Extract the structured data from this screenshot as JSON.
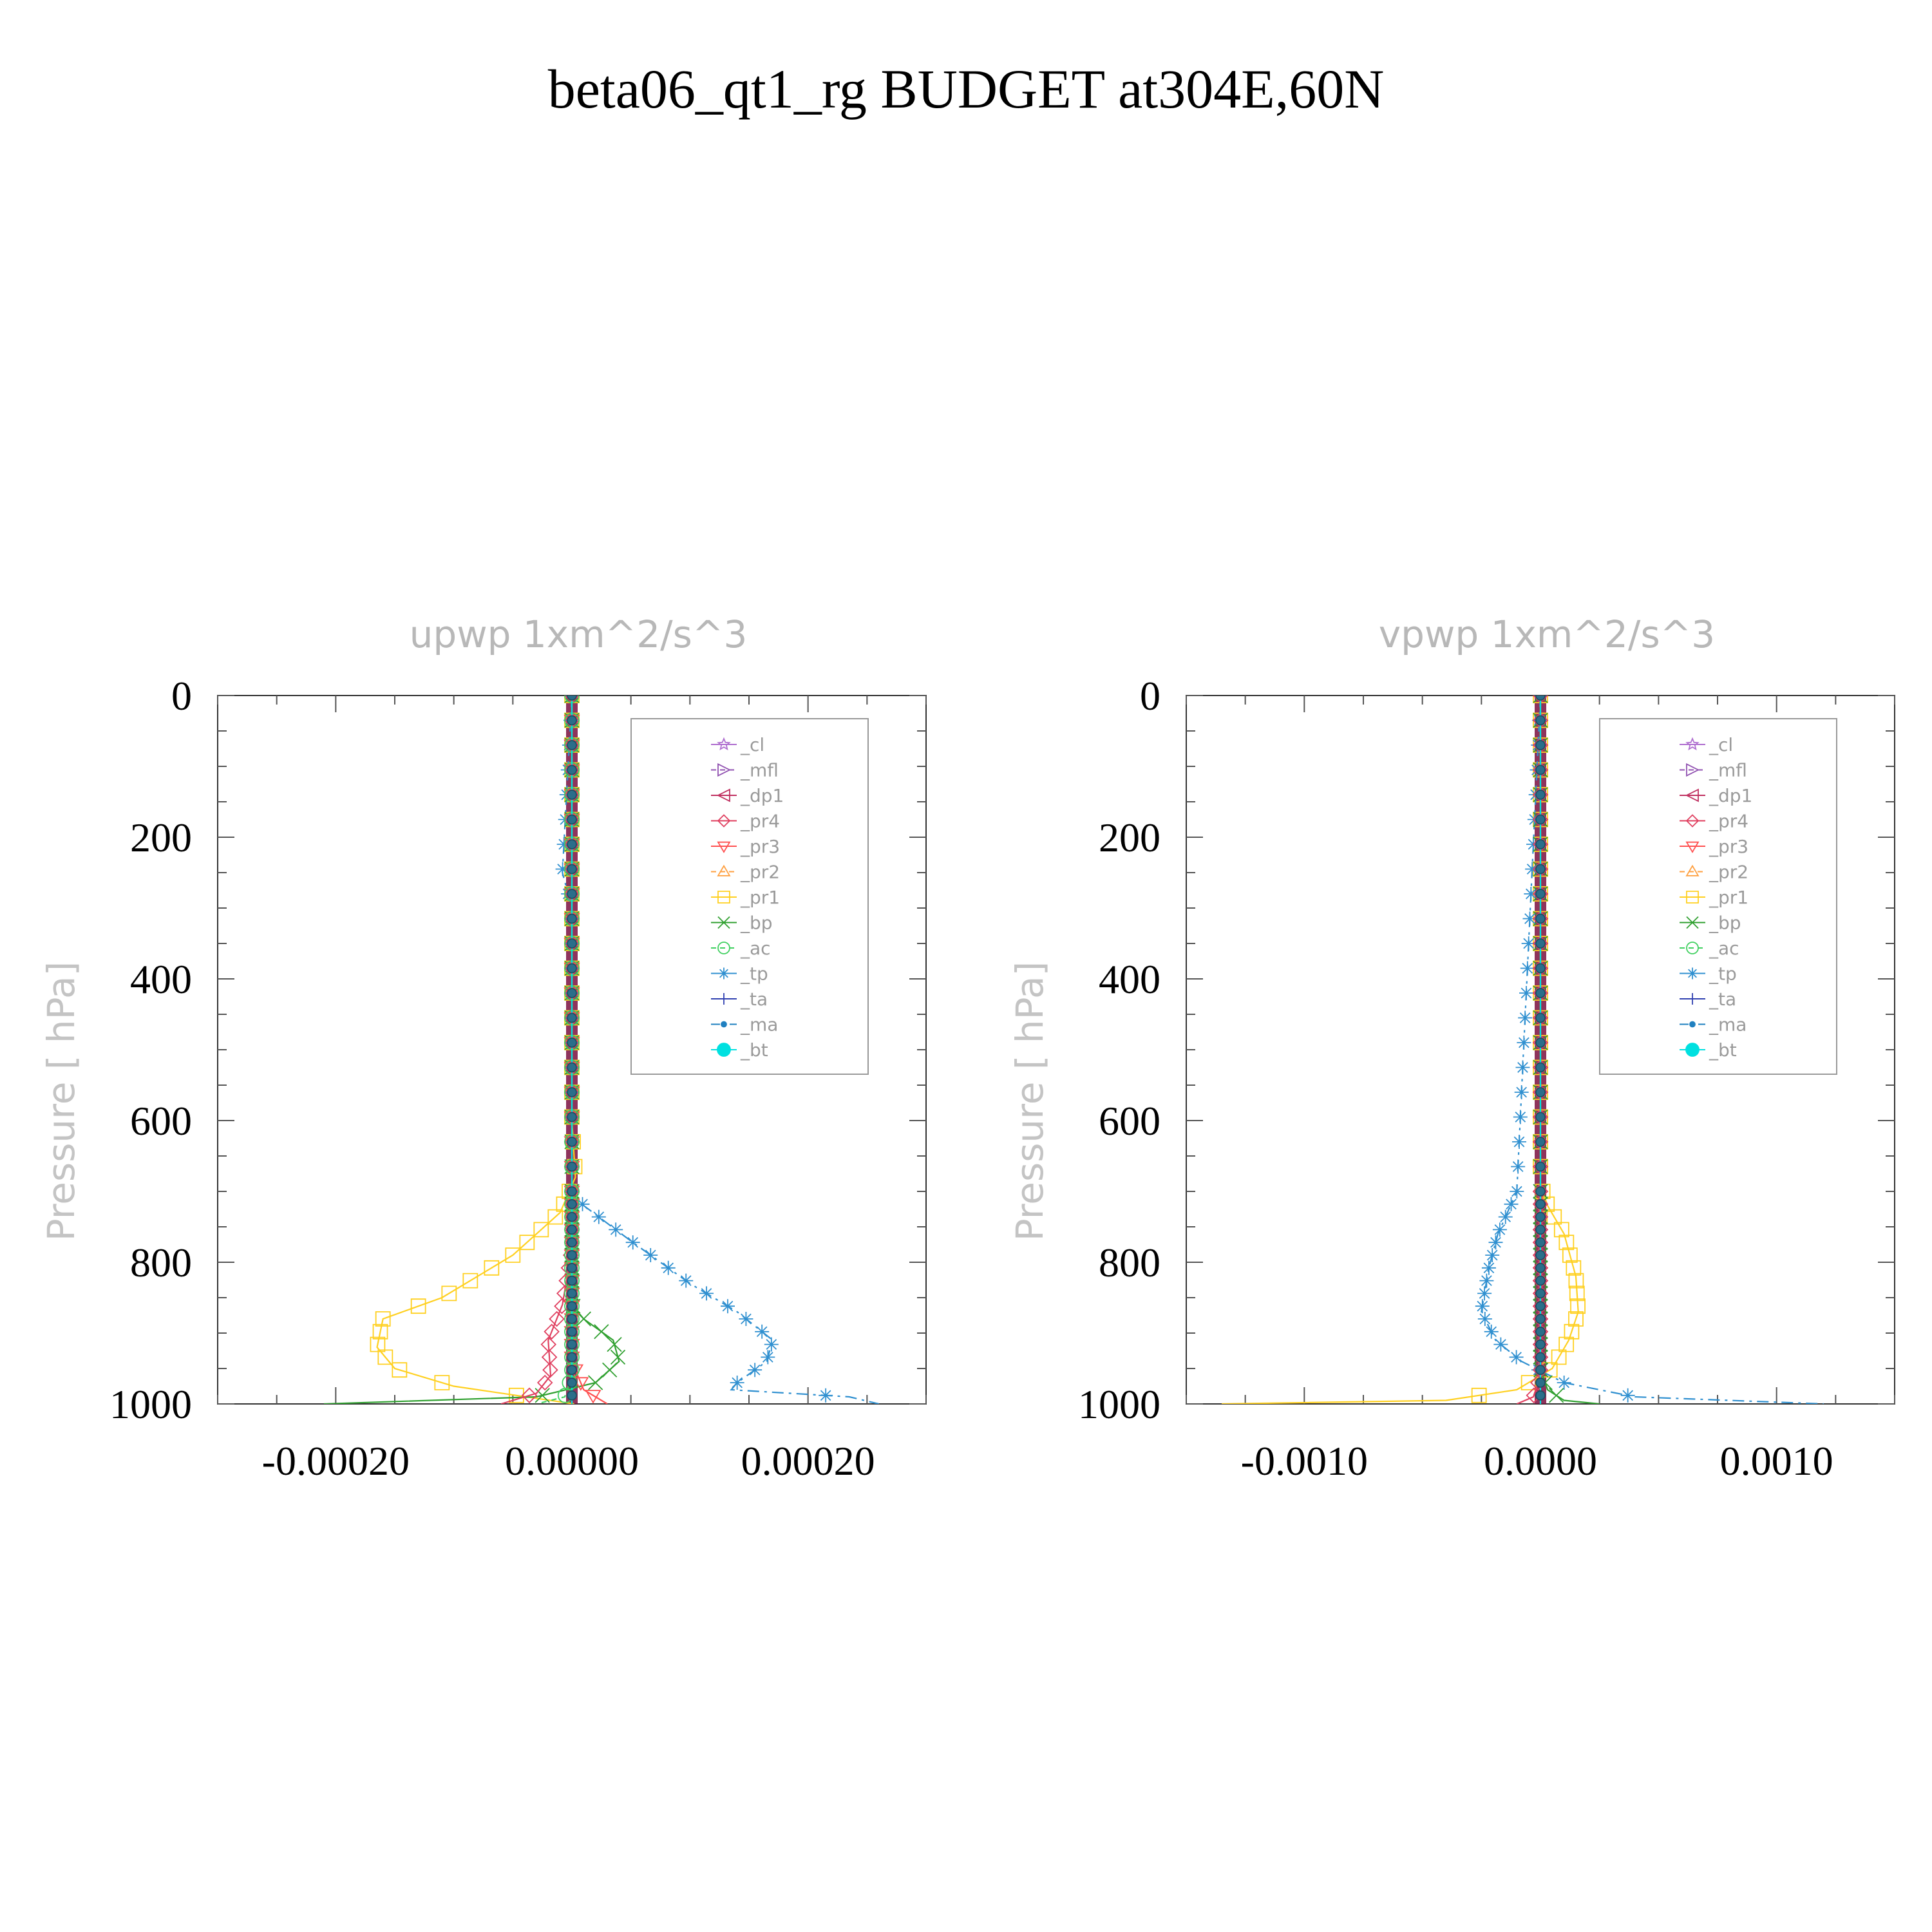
{
  "figure_title": "beta06_qt1_rg  BUDGET at304E,60N",
  "ylabel": "Pressure [ hPa]",
  "legend": [
    "_cl",
    "_mfl",
    "_dp1",
    "_pr4",
    "_pr3",
    "_pr2",
    "_pr1",
    "_bp",
    "_ac",
    "_tp",
    "_ta",
    "_ma",
    "_bt"
  ],
  "series_colors": {
    "_cl": "#b070d0",
    "_mfl": "#9050b0",
    "_dp1": "#c03060",
    "_pr4": "#e04060",
    "_pr3": "#ff5050",
    "_pr2": "#ffa040",
    "_pr1": "#ffd020",
    "_bp": "#30a030",
    "_ac": "#40d060",
    "_tp": "#3090d0",
    "_ta": "#3040b0",
    "_ma": "#2080c0",
    "_bt": "#00e0e0"
  },
  "chart_data": [
    {
      "type": "line",
      "title": "upwp    1xm^2/s^3",
      "ylabel": "Pressure [ hPa]",
      "ylim": [
        1000,
        0
      ],
      "xlim": [
        -0.0003,
        0.0003
      ],
      "xticks": [
        -0.0002,
        0.0,
        0.0002
      ],
      "xtick_labels": [
        "-0.00020",
        "0.00000",
        "0.00020"
      ],
      "yticks": [
        0,
        200,
        400,
        600,
        800,
        1000
      ],
      "ytick_labels": [
        "0",
        "200",
        "400",
        "600",
        "800",
        "1000"
      ],
      "legend_position": "top-right",
      "series": [
        {
          "key": "_pr1",
          "marker": "square",
          "dash": "",
          "x": [
            0.0,
            0.0,
            3e-06,
            -1e-05,
            -5e-05,
            -0.00011,
            -0.00016,
            -0.000165,
            -0.00015,
            -0.0001,
            2e-06
          ],
          "y": [
            0,
            600,
            680,
            730,
            790,
            850,
            880,
            920,
            950,
            975,
            1000
          ]
        },
        {
          "key": "_tp",
          "marker": "asterisk",
          "dash": "18,8,4,8",
          "x": [
            0.0,
            -8e-06,
            0.0,
            0.0,
            1e-05,
            5e-05,
            0.0001,
            0.00014,
            0.00017,
            0.000165,
            0.00014,
            0.000135,
            0.000235,
            0.00026
          ],
          "y": [
            0,
            250,
            300,
            700,
            720,
            770,
            830,
            870,
            910,
            940,
            970,
            980,
            990,
            1000
          ]
        },
        {
          "key": "_bp",
          "marker": "x",
          "dash": "",
          "x": [
            0.0,
            0.0,
            1e-05,
            3.5e-05,
            4e-05,
            2e-05,
            -3e-05,
            -0.00021
          ],
          "y": [
            0,
            860,
            880,
            910,
            940,
            970,
            990,
            1000
          ]
        },
        {
          "key": "_pr4",
          "marker": "diamond",
          "dash": "",
          "x": [
            0.0,
            0.0,
            -8e-06,
            -2e-05,
            -1.8e-05,
            -3e-05,
            -6e-05
          ],
          "y": [
            0,
            780,
            860,
            910,
            960,
            985,
            1000
          ]
        },
        {
          "key": "_pr3",
          "marker": "tri-down",
          "dash": "",
          "x": [
            0.0,
            0.0,
            1e-05,
            2e-05,
            3e-05
          ],
          "y": [
            0,
            940,
            980,
            990,
            1000
          ]
        },
        {
          "key": "_ac",
          "marker": "circle",
          "dash": "8,8",
          "x": [
            0.0,
            0.0,
            -6e-06,
            -3e-05
          ],
          "y": [
            0,
            960,
            990,
            1000
          ]
        },
        {
          "key": "_bt",
          "marker": "dot",
          "dash": "",
          "x": [
            0.0,
            0.0
          ],
          "y": [
            0,
            1000
          ]
        }
      ]
    },
    {
      "type": "line",
      "title": "vpwp    1xm^2/s^3",
      "ylabel": "Pressure [ hPa]",
      "ylim": [
        1000,
        0
      ],
      "xlim": [
        -0.0015,
        0.0015
      ],
      "xticks": [
        -0.001,
        0.0,
        0.001
      ],
      "xtick_labels": [
        "-0.0010",
        "0.0000",
        "0.0010"
      ],
      "yticks": [
        0,
        200,
        400,
        600,
        800,
        1000
      ],
      "ytick_labels": [
        "0",
        "200",
        "400",
        "600",
        "800",
        "1000"
      ],
      "legend_position": "top-right",
      "series": [
        {
          "key": "_pr1",
          "marker": "square",
          "dash": "",
          "x": [
            0.0,
            0.0,
            3e-05,
            0.0001,
            0.00015,
            0.00016,
            0.00012,
            5e-05,
            -0.0001,
            -0.0004,
            -0.00135
          ],
          "y": [
            0,
            690,
            720,
            760,
            820,
            870,
            910,
            950,
            980,
            995,
            1000
          ]
        },
        {
          "key": "_tp",
          "marker": "asterisk",
          "dash": "18,8,4,8",
          "x": [
            0.0,
            -0.0001,
            -0.00018,
            -0.00022,
            -0.00025,
            -0.00019,
            -8e-05,
            0.0001,
            0.0004,
            0.0012
          ],
          "y": [
            0,
            700,
            760,
            810,
            870,
            910,
            940,
            970,
            990,
            1000
          ]
        },
        {
          "key": "_bp",
          "marker": "x",
          "dash": "",
          "x": [
            0.0,
            0.0,
            3e-05,
            0.0001,
            0.00025
          ],
          "y": [
            0,
            950,
            980,
            995,
            1000
          ]
        },
        {
          "key": "_pr4",
          "marker": "diamond",
          "dash": "",
          "x": [
            0.0,
            0.0,
            -3e-05,
            -0.0001
          ],
          "y": [
            0,
            960,
            990,
            1000
          ]
        },
        {
          "key": "_bt",
          "marker": "dot",
          "dash": "",
          "x": [
            0.0,
            0.0
          ],
          "y": [
            0,
            1000
          ]
        }
      ]
    }
  ]
}
